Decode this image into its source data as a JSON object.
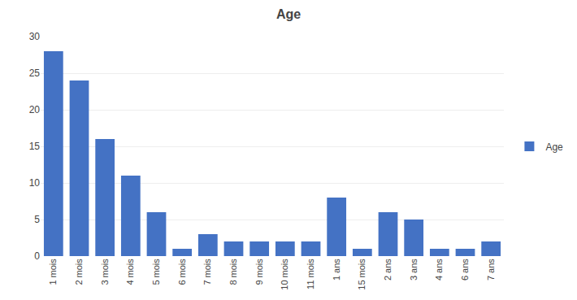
{
  "chart_data": {
    "type": "bar",
    "title": "Age",
    "categories": [
      "1 mois",
      "2 mois",
      "3 mois",
      "4 mois",
      "5 mois",
      "6 mois",
      "7 mois",
      "8 mois",
      "9 mois",
      "10 mois",
      "11 mois",
      "1 ans",
      "15 mois",
      "2 ans",
      "3 ans",
      "4 ans",
      "6 ans",
      "7 ans"
    ],
    "series": [
      {
        "name": "Age",
        "color": "#4472C4",
        "values": [
          28,
          24,
          16,
          11,
          6,
          1,
          3,
          2,
          2,
          2,
          2,
          8,
          1,
          6,
          5,
          1,
          1,
          2
        ]
      }
    ],
    "ylim": [
      0,
      30
    ],
    "yticks": [
      0,
      5,
      10,
      15,
      20,
      25,
      30
    ],
    "grid": true,
    "legend": "right"
  }
}
